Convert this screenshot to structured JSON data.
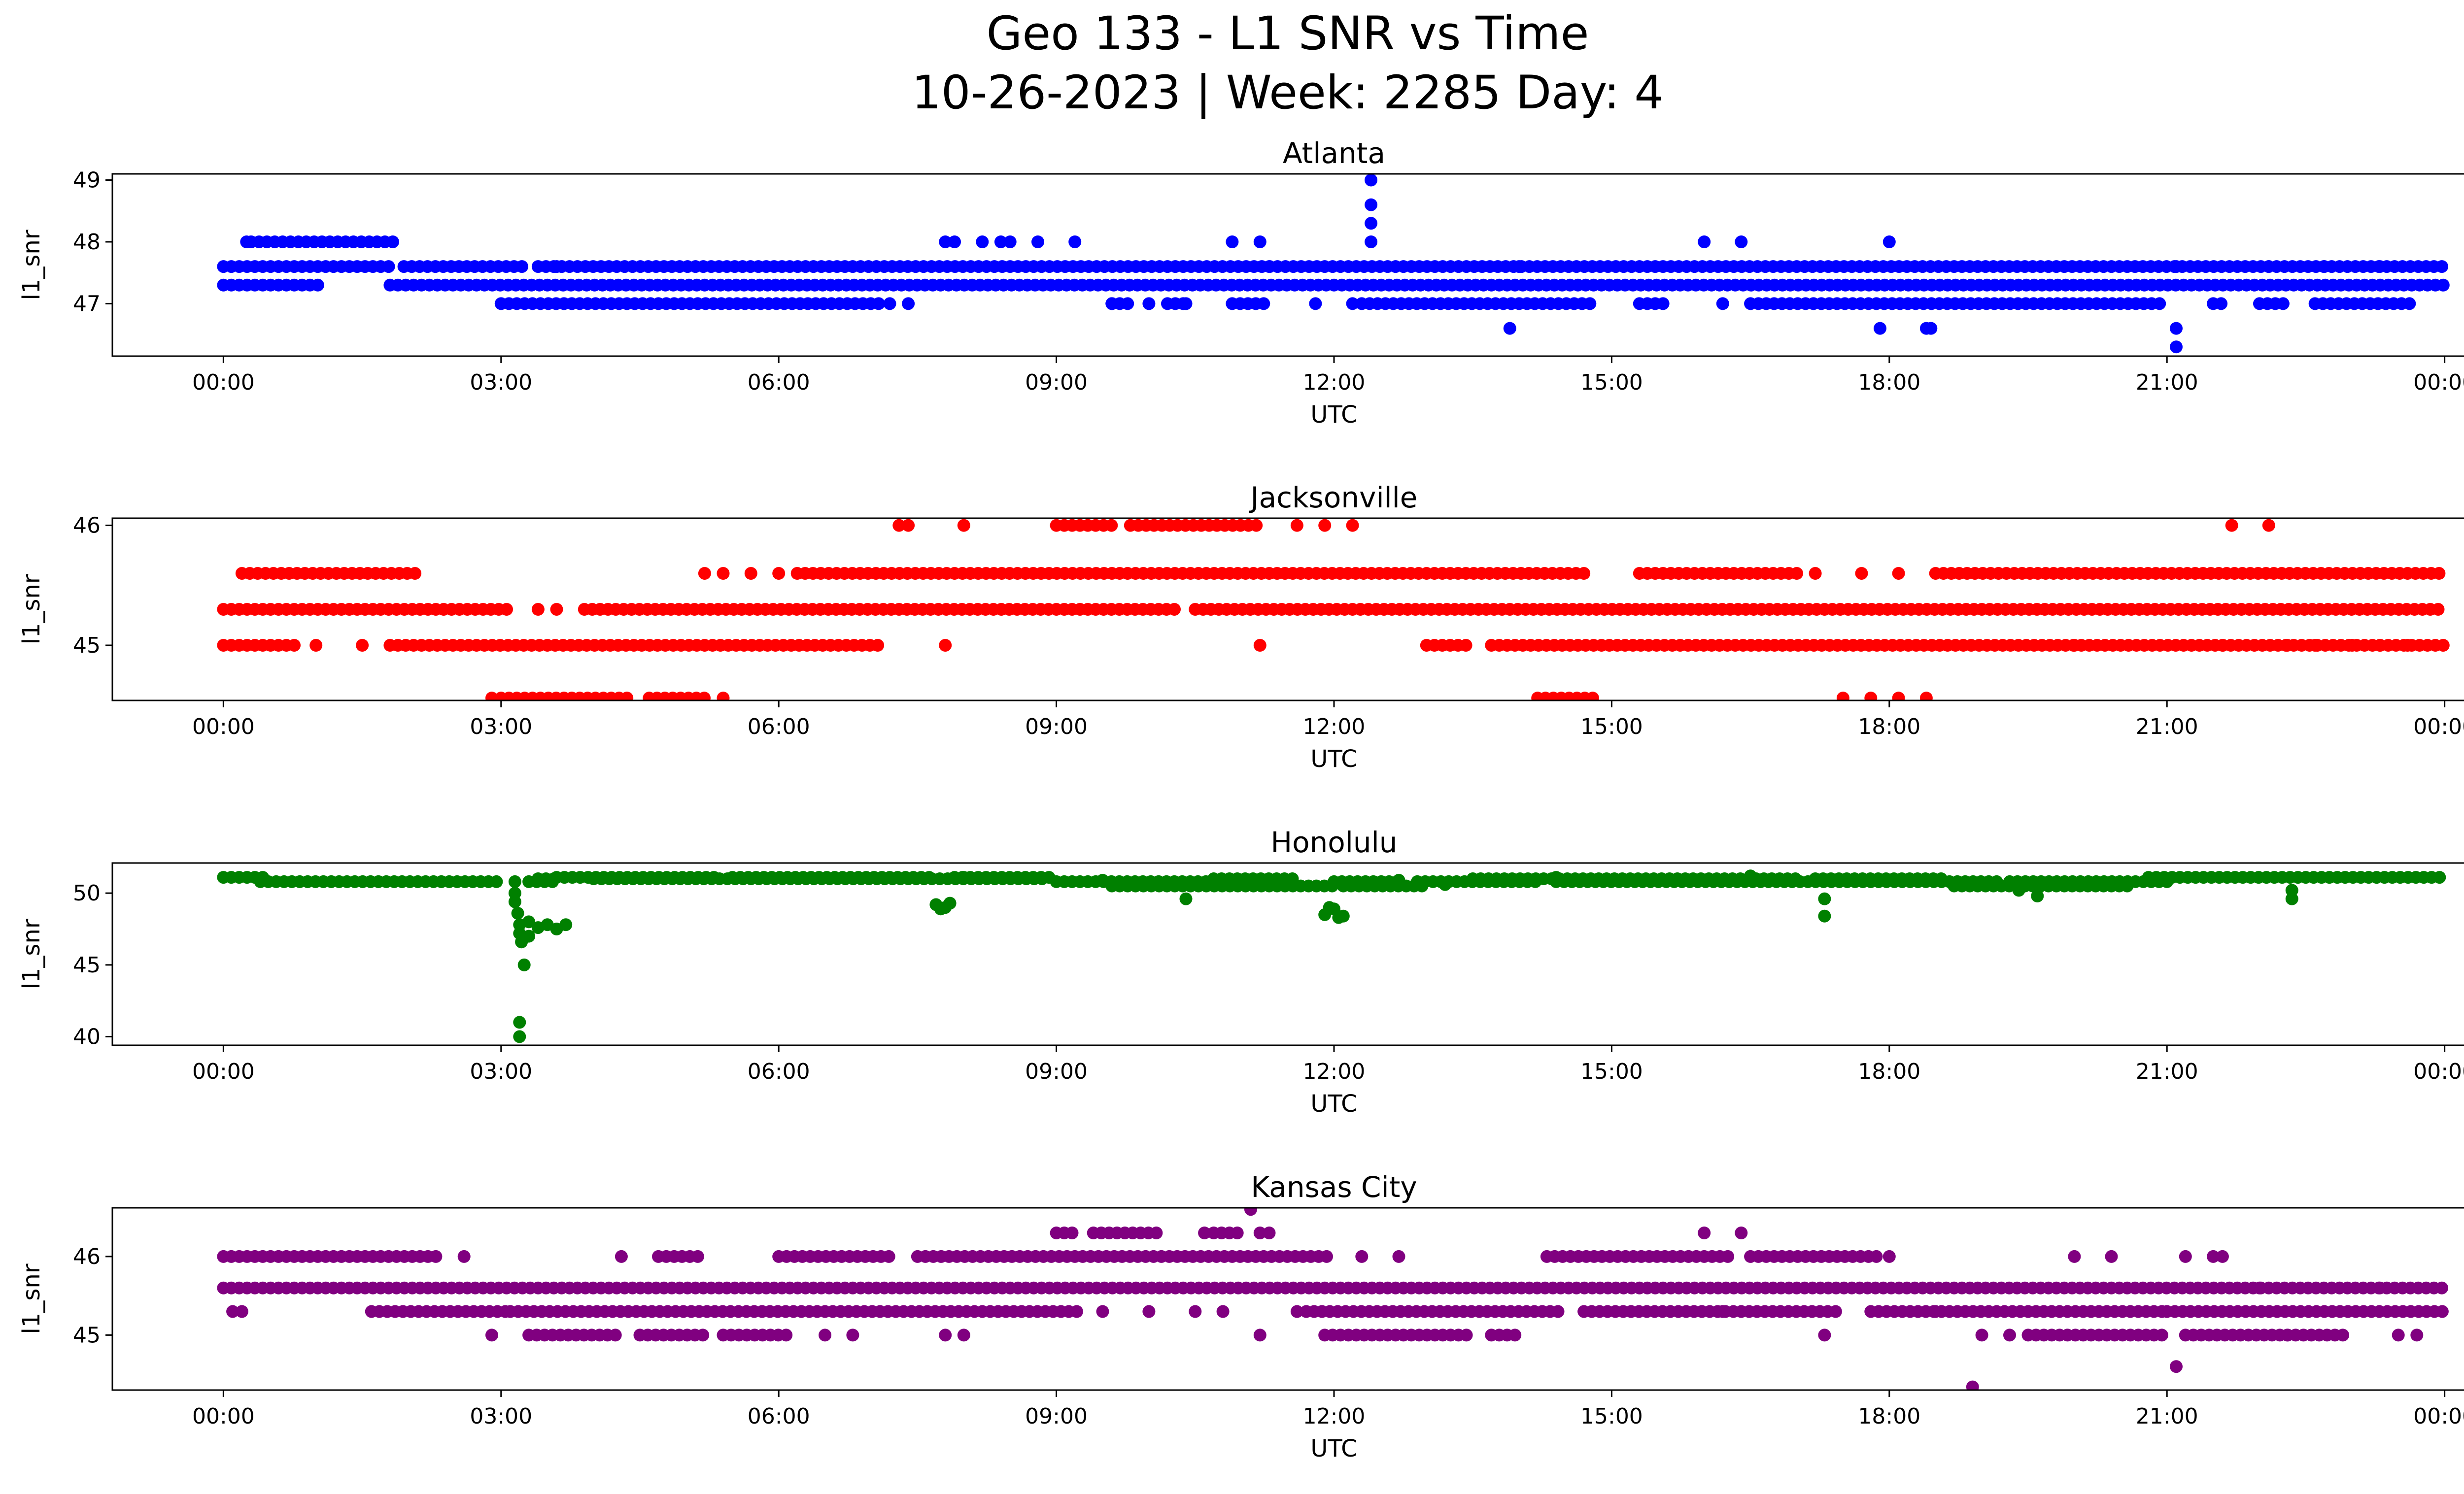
{
  "chart_data": {
    "type": "scatter",
    "title_line1": "Geo 133 - L1 SNR vs Time",
    "title_line2": "10-26-2023 | Week: 2285 Day: 4",
    "xlabel": "UTC",
    "ylabel": "l1_snr",
    "xlim_hours": [
      -1.2,
      25.2
    ],
    "x_ticks": [
      {
        "h": 0,
        "label": "00:00"
      },
      {
        "h": 3,
        "label": "03:00"
      },
      {
        "h": 6,
        "label": "06:00"
      },
      {
        "h": 9,
        "label": "09:00"
      },
      {
        "h": 12,
        "label": "12:00"
      },
      {
        "h": 15,
        "label": "15:00"
      },
      {
        "h": 18,
        "label": "18:00"
      },
      {
        "h": 21,
        "label": "21:00"
      },
      {
        "h": 24,
        "label": "00:00"
      }
    ],
    "panels": [
      {
        "name": "Atlanta",
        "color": "#0000ff",
        "ylim": [
          46.15,
          49.1
        ],
        "yticks": [
          47,
          48,
          49
        ],
        "bands": [
          {
            "y": 47.6,
            "segments": [
              [
                0,
                1.8
              ],
              [
                1.95,
                3.3
              ],
              [
                3.4,
                24
              ]
            ]
          },
          {
            "y": 47.3,
            "segments": [
              [
                0,
                1.05
              ],
              [
                1.8,
                24
              ]
            ]
          },
          {
            "y": 47.0,
            "segments": [
              [
                3.0,
                7.1
              ],
              [
                9.6,
                9.8
              ],
              [
                10.2,
                10.4
              ],
              [
                10.9,
                11.3
              ],
              [
                12.3,
                14.8
              ],
              [
                15.3,
                15.6
              ],
              [
                16.5,
                21.0
              ],
              [
                21.5,
                21.6
              ],
              [
                22.0,
                22.3
              ],
              [
                22.6,
                23.7
              ]
            ]
          },
          {
            "y": 48.0,
            "segments": [
              [
                0.25,
                0.3
              ],
              [
                0.3,
                1.9
              ]
            ]
          }
        ],
        "points": [
          [
            7.8,
            48.0
          ],
          [
            7.9,
            48.0
          ],
          [
            8.2,
            48.0
          ],
          [
            8.4,
            48.0
          ],
          [
            8.5,
            48.0
          ],
          [
            8.8,
            48.0
          ],
          [
            9.2,
            48.0
          ],
          [
            10.9,
            48.0
          ],
          [
            11.2,
            48.0
          ],
          [
            12.4,
            48.0
          ],
          [
            12.4,
            48.3
          ],
          [
            12.4,
            48.6
          ],
          [
            12.4,
            49.0
          ],
          [
            16.0,
            48.0
          ],
          [
            16.4,
            48.0
          ],
          [
            18.0,
            48.0
          ],
          [
            7.2,
            47.0
          ],
          [
            7.4,
            47.0
          ],
          [
            9.6,
            47.0
          ],
          [
            10.0,
            47.0
          ],
          [
            10.4,
            47.0
          ],
          [
            11.8,
            47.0
          ],
          [
            12.2,
            47.0
          ],
          [
            16.2,
            47.0
          ],
          [
            13.9,
            46.6
          ],
          [
            17.9,
            46.6
          ],
          [
            18.4,
            46.6
          ],
          [
            18.45,
            46.6
          ],
          [
            21.1,
            46.6
          ],
          [
            21.1,
            46.3
          ],
          [
            3.6,
            47.6
          ],
          [
            11.3,
            47.6
          ],
          [
            14.0,
            47.6
          ],
          [
            21.1,
            47.6
          ],
          [
            22.1,
            47.6
          ],
          [
            22.7,
            47.6
          ],
          [
            23.3,
            47.6
          ]
        ]
      },
      {
        "name": "Jacksonville",
        "color": "#ff0000",
        "ylim": [
          44.54,
          46.06
        ],
        "yticks": [
          45,
          46
        ],
        "bands": [
          {
            "y": 45.3,
            "segments": [
              [
                0,
                3.1
              ],
              [
                3.9,
                10.3
              ],
              [
                10.5,
                24
              ]
            ]
          },
          {
            "y": 45.0,
            "segments": [
              [
                0,
                0.8
              ],
              [
                1.8,
                7.1
              ],
              [
                13.0,
                13.5
              ],
              [
                13.7,
                24
              ]
            ]
          },
          {
            "y": 45.6,
            "segments": [
              [
                0.2,
                2.1
              ],
              [
                6.2,
                14.7
              ],
              [
                15.3,
                17.0
              ],
              [
                18.5,
                24
              ]
            ]
          },
          {
            "y": 44.56,
            "segments": [
              [
                3.0,
                4.4
              ],
              [
                4.6,
                5.2
              ],
              [
                14.2,
                14.8
              ]
            ]
          },
          {
            "y": 46.0,
            "segments": [
              [
                9.0,
                9.6
              ],
              [
                9.8,
                11.2
              ]
            ]
          }
        ],
        "points": [
          [
            1.0,
            45.0
          ],
          [
            1.5,
            45.0
          ],
          [
            7.3,
            46.0
          ],
          [
            7.4,
            46.0
          ],
          [
            8.0,
            46.0
          ],
          [
            11.6,
            46.0
          ],
          [
            11.9,
            46.0
          ],
          [
            12.2,
            46.0
          ],
          [
            21.7,
            46.0
          ],
          [
            22.1,
            46.0
          ],
          [
            5.2,
            45.6
          ],
          [
            5.4,
            45.6
          ],
          [
            5.7,
            45.6
          ],
          [
            6.0,
            45.6
          ],
          [
            17.2,
            45.6
          ],
          [
            17.7,
            45.6
          ],
          [
            18.1,
            45.6
          ],
          [
            2.9,
            44.56
          ],
          [
            5.4,
            44.56
          ],
          [
            17.5,
            44.56
          ],
          [
            17.8,
            44.56
          ],
          [
            18.1,
            44.56
          ],
          [
            18.4,
            44.56
          ],
          [
            3.4,
            45.3
          ],
          [
            3.6,
            45.3
          ],
          [
            7.8,
            45.0
          ],
          [
            11.2,
            45.0
          ],
          [
            22.3,
            45.0
          ],
          [
            22.6,
            45.0
          ],
          [
            23.0,
            45.0
          ],
          [
            23.3,
            45.0
          ],
          [
            23.6,
            45.0
          ],
          [
            20.0,
            45.0
          ],
          [
            21.6,
            45.0
          ]
        ]
      },
      {
        "name": "Honolulu",
        "color": "#008000",
        "ylim": [
          39.4,
          52.1
        ],
        "yticks": [
          40,
          45,
          50
        ],
        "bands": [
          {
            "y": 51.1,
            "segments": [
              [
                0,
                0.5
              ],
              [
                3.6,
                5.3
              ],
              [
                5.5,
                7.7
              ],
              [
                7.9,
                9.0
              ],
              [
                20.8,
                24
              ]
            ]
          },
          {
            "y": 50.8,
            "segments": [
              [
                0.4,
                3.0
              ],
              [
                3.3,
                3.6
              ],
              [
                9.0,
                10.8
              ],
              [
                12.0,
                12.7
              ],
              [
                12.9,
                14.2
              ],
              [
                14.4,
                19.2
              ],
              [
                19.3,
                21.0
              ]
            ]
          },
          {
            "y": 50.5,
            "segments": [
              [
                9.6,
                12.0
              ],
              [
                12.1,
                13.0
              ],
              [
                18.7,
                20.6
              ]
            ]
          },
          {
            "y": 51.0,
            "segments": [
              [
                3.4,
                3.6
              ],
              [
                4.0,
                8.9
              ],
              [
                10.7,
                11.6
              ],
              [
                13.5,
                17.0
              ],
              [
                17.2,
                18.6
              ]
            ]
          }
        ],
        "points": [
          [
            3.15,
            50.8
          ],
          [
            3.15,
            50.0
          ],
          [
            3.15,
            49.4
          ],
          [
            3.18,
            48.6
          ],
          [
            3.2,
            47.8
          ],
          [
            3.2,
            47.2
          ],
          [
            3.22,
            46.6
          ],
          [
            3.25,
            45.0
          ],
          [
            3.2,
            41.0
          ],
          [
            3.2,
            40.0
          ],
          [
            3.3,
            48.0
          ],
          [
            3.4,
            47.6
          ],
          [
            3.5,
            47.8
          ],
          [
            3.6,
            47.5
          ],
          [
            3.7,
            47.8
          ],
          [
            3.3,
            47.0
          ],
          [
            7.7,
            49.2
          ],
          [
            7.8,
            49.0
          ],
          [
            7.85,
            49.3
          ],
          [
            7.75,
            48.9
          ],
          [
            11.9,
            48.5
          ],
          [
            12.0,
            48.9
          ],
          [
            12.05,
            48.3
          ],
          [
            11.95,
            49.0
          ],
          [
            12.1,
            48.4
          ],
          [
            17.3,
            48.4
          ],
          [
            17.3,
            49.6
          ],
          [
            22.35,
            49.6
          ],
          [
            22.35,
            50.2
          ],
          [
            10.4,
            49.6
          ],
          [
            19.6,
            49.8
          ],
          [
            19.4,
            50.2
          ],
          [
            12.7,
            50.9
          ],
          [
            13.2,
            50.6
          ],
          [
            8.0,
            51.1
          ],
          [
            9.5,
            50.9
          ],
          [
            14.4,
            51.1
          ],
          [
            16.5,
            51.2
          ]
        ]
      },
      {
        "name": "Kansas City",
        "color": "#800080",
        "ylim": [
          44.3,
          46.62
        ],
        "yticks": [
          45,
          46
        ],
        "bands": [
          {
            "y": 45.6,
            "segments": [
              [
                0,
                24
              ]
            ]
          },
          {
            "y": 45.3,
            "segments": [
              [
                1.6,
                3.1
              ],
              [
                3.1,
                9.3
              ],
              [
                11.7,
                14.5
              ],
              [
                14.7,
                17.5
              ],
              [
                17.8,
                21.0
              ],
              [
                21.0,
                24
              ]
            ]
          },
          {
            "y": 46.0,
            "segments": [
              [
                0,
                2.3
              ],
              [
                4.7,
                5.2
              ],
              [
                6.0,
                7.2
              ],
              [
                7.5,
                12.0
              ],
              [
                14.3,
                16.3
              ],
              [
                16.5,
                17.9
              ]
            ]
          },
          {
            "y": 45.0,
            "segments": [
              [
                3.3,
                4.3
              ],
              [
                4.5,
                5.2
              ],
              [
                5.4,
                6.1
              ],
              [
                11.9,
                13.5
              ],
              [
                13.7,
                14.0
              ],
              [
                19.5,
                21.0
              ],
              [
                21.2,
                22.9
              ]
            ]
          },
          {
            "y": 46.3,
            "segments": [
              [
                9.0,
                9.2
              ],
              [
                9.4,
                10.1
              ],
              [
                10.7,
                11.0
              ]
            ]
          }
        ],
        "points": [
          [
            0.1,
            45.3
          ],
          [
            0.2,
            45.3
          ],
          [
            2.9,
            45.0
          ],
          [
            2.6,
            46.0
          ],
          [
            4.3,
            46.0
          ],
          [
            6.5,
            45.0
          ],
          [
            6.8,
            45.0
          ],
          [
            7.8,
            45.0
          ],
          [
            8.0,
            45.0
          ],
          [
            10.6,
            46.3
          ],
          [
            11.1,
            46.6
          ],
          [
            11.2,
            46.3
          ],
          [
            11.3,
            46.3
          ],
          [
            12.3,
            46.0
          ],
          [
            12.7,
            46.0
          ],
          [
            11.2,
            45.0
          ],
          [
            11.6,
            45.3
          ],
          [
            9.5,
            45.3
          ],
          [
            10.0,
            45.3
          ],
          [
            10.5,
            45.3
          ],
          [
            10.8,
            45.3
          ],
          [
            16.0,
            46.3
          ],
          [
            16.4,
            46.3
          ],
          [
            17.3,
            45.0
          ],
          [
            18.0,
            46.0
          ],
          [
            18.9,
            44.34
          ],
          [
            19.0,
            45.0
          ],
          [
            19.3,
            45.0
          ],
          [
            20.0,
            46.0
          ],
          [
            20.4,
            46.0
          ],
          [
            21.1,
            44.6
          ],
          [
            21.2,
            46.0
          ],
          [
            21.5,
            46.0
          ],
          [
            21.6,
            46.0
          ],
          [
            22.3,
            45.0
          ],
          [
            23.5,
            45.0
          ],
          [
            23.7,
            45.0
          ],
          [
            16.2,
            45.3
          ],
          [
            18.5,
            45.3
          ],
          [
            22.0,
            45.6
          ],
          [
            23.3,
            45.6
          ]
        ]
      }
    ]
  }
}
